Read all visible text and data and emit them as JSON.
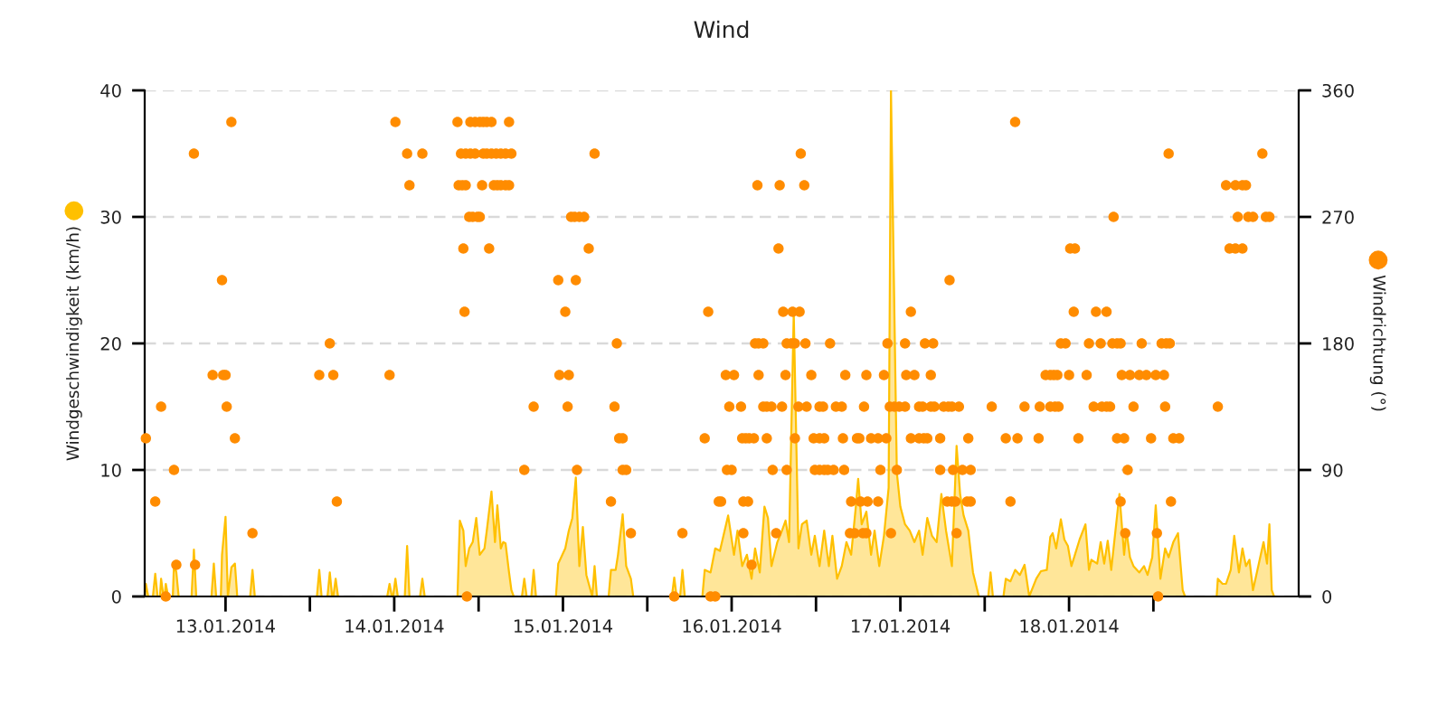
{
  "chart_data": {
    "type": "area",
    "title": "Wind",
    "ylabel": "Windgeschwindigkeit (km/h)",
    "y2label": "Windrichtung (°)",
    "xlim": [
      "2014-01-13T00:30",
      "2014-01-19T20:40"
    ],
    "xticks": [
      {
        "value": "2014-01-13T12:00",
        "label": "13.01.2014"
      },
      {
        "value": "2014-01-14T00:00",
        "label": null
      },
      {
        "value": "2014-01-14T12:00",
        "label": "14.01.2014"
      },
      {
        "value": "2014-01-15T00:00",
        "label": null
      },
      {
        "value": "2014-01-15T12:00",
        "label": "15.01.2014"
      },
      {
        "value": "2014-01-16T00:00",
        "label": null
      },
      {
        "value": "2014-01-16T12:00",
        "label": "16.01.2014"
      },
      {
        "value": "2014-01-17T00:00",
        "label": null
      },
      {
        "value": "2014-01-17T12:00",
        "label": "17.01.2014"
      },
      {
        "value": "2014-01-18T00:00",
        "label": null
      },
      {
        "value": "2014-01-18T12:00",
        "label": "18.01.2014"
      },
      {
        "value": "2014-01-19T00:00",
        "label": null
      }
    ],
    "ylim": [
      0,
      40
    ],
    "yticks": [
      0,
      10,
      20,
      30,
      40
    ],
    "y2lim": [
      0,
      360
    ],
    "y2ticks": [
      0,
      90,
      180,
      270,
      360
    ],
    "grid": "y",
    "legend": false,
    "series": [
      {
        "color": "#ffc000",
        "x": [
          "2014-01-13T00:30",
          "2014-01-13T00:40",
          "2014-01-13T01:00",
          "2014-01-13T01:40",
          "2014-01-13T02:00",
          "2014-01-13T02:20",
          "2014-01-13T02:40",
          "2014-01-13T02:50",
          "2014-01-13T03:10",
          "2014-01-13T03:20",
          "2014-01-13T03:30",
          "2014-01-13T03:50",
          "2014-01-13T04:30",
          "2014-01-13T04:40",
          "2014-01-13T05:00",
          "2014-01-13T05:20",
          "2014-01-13T07:10",
          "2014-01-13T07:30",
          "2014-01-13T07:50",
          "2014-01-13T10:00",
          "2014-01-13T10:20",
          "2014-01-13T10:40",
          "2014-01-13T11:20",
          "2014-01-13T11:30",
          "2014-01-13T12:00",
          "2014-01-13T12:20",
          "2014-01-13T12:50",
          "2014-01-13T13:20",
          "2014-01-13T13:40",
          "2014-01-13T15:30",
          "2014-01-13T15:50",
          "2014-01-13T16:10",
          "2014-01-14T01:00",
          "2014-01-14T01:20",
          "2014-01-14T01:40",
          "2014-01-14T02:30",
          "2014-01-14T02:50",
          "2014-01-14T03:10",
          "2014-01-14T03:20",
          "2014-01-14T03:40",
          "2014-01-14T04:00",
          "2014-01-14T11:00",
          "2014-01-14T11:20",
          "2014-01-14T11:40",
          "2014-01-14T11:50",
          "2014-01-14T12:10",
          "2014-01-14T12:30",
          "2014-01-14T13:30",
          "2014-01-14T13:50",
          "2014-01-14T14:10",
          "2014-01-14T15:40",
          "2014-01-14T16:00",
          "2014-01-14T16:20",
          "2014-01-14T21:00",
          "2014-01-14T21:20",
          "2014-01-14T21:50",
          "2014-01-14T22:10",
          "2014-01-14T22:40",
          "2014-01-14T23:10",
          "2014-01-14T23:40",
          "2014-01-15T00:10",
          "2014-01-15T00:50",
          "2014-01-15T01:10",
          "2014-01-15T01:50",
          "2014-01-15T02:20",
          "2014-01-15T02:40",
          "2014-01-15T03:10",
          "2014-01-15T03:30",
          "2014-01-15T03:50",
          "2014-01-15T04:20",
          "2014-01-15T04:40",
          "2014-01-15T05:00",
          "2014-01-15T06:10",
          "2014-01-15T06:30",
          "2014-01-15T06:50",
          "2014-01-15T07:30",
          "2014-01-15T07:50",
          "2014-01-15T08:10",
          "2014-01-15T11:00",
          "2014-01-15T11:20",
          "2014-01-15T12:20",
          "2014-01-15T12:50",
          "2014-01-15T13:20",
          "2014-01-15T13:50",
          "2014-01-15T14:20",
          "2014-01-15T14:50",
          "2014-01-15T15:20",
          "2014-01-15T16:10",
          "2014-01-15T16:30",
          "2014-01-15T16:50",
          "2014-01-15T18:30",
          "2014-01-15T18:50",
          "2014-01-15T19:30",
          "2014-01-15T19:50",
          "2014-01-15T20:30",
          "2014-01-15T21:00",
          "2014-01-15T21:40",
          "2014-01-15T22:00",
          "2014-01-16T03:30",
          "2014-01-16T03:50",
          "2014-01-16T04:10",
          "2014-01-16T04:40",
          "2014-01-16T05:00",
          "2014-01-16T05:20",
          "2014-01-16T07:50",
          "2014-01-16T08:10",
          "2014-01-16T09:00",
          "2014-01-16T09:40",
          "2014-01-16T10:20",
          "2014-01-16T11:30",
          "2014-01-16T12:20",
          "2014-01-16T12:50",
          "2014-01-16T13:30",
          "2014-01-16T14:10",
          "2014-01-16T14:50",
          "2014-01-16T15:20",
          "2014-01-16T16:00",
          "2014-01-16T16:40",
          "2014-01-16T17:10",
          "2014-01-16T17:40",
          "2014-01-16T18:30",
          "2014-01-16T19:10",
          "2014-01-16T19:40",
          "2014-01-16T20:10",
          "2014-01-16T20:50",
          "2014-01-16T21:30",
          "2014-01-16T22:00",
          "2014-01-16T22:40",
          "2014-01-16T23:20",
          "2014-01-16T23:50",
          "2014-01-17T00:30",
          "2014-01-17T01:10",
          "2014-01-17T01:50",
          "2014-01-17T02:20",
          "2014-01-17T03:00",
          "2014-01-17T03:40",
          "2014-01-17T04:20",
          "2014-01-17T05:00",
          "2014-01-17T05:40",
          "2014-01-17T06:00",
          "2014-01-17T06:30",
          "2014-01-17T07:10",
          "2014-01-17T07:50",
          "2014-01-17T08:20",
          "2014-01-17T09:00",
          "2014-01-17T09:40",
          "2014-01-17T10:20",
          "2014-01-17T10:40",
          "2014-01-17T11:30",
          "2014-01-17T12:00",
          "2014-01-17T12:40",
          "2014-01-17T13:20",
          "2014-01-17T14:00",
          "2014-01-17T14:40",
          "2014-01-17T15:10",
          "2014-01-17T15:50",
          "2014-01-17T16:30",
          "2014-01-17T17:10",
          "2014-01-17T17:50",
          "2014-01-17T18:30",
          "2014-01-17T19:20",
          "2014-01-17T20:00",
          "2014-01-17T20:30",
          "2014-01-17T21:00",
          "2014-01-17T21:40",
          "2014-01-17T22:20",
          "2014-01-17T23:10",
          "2014-01-18T00:30",
          "2014-01-18T00:50",
          "2014-01-18T01:10",
          "2014-01-18T02:40",
          "2014-01-18T03:00",
          "2014-01-18T03:40",
          "2014-01-18T04:20",
          "2014-01-18T05:00",
          "2014-01-18T05:40",
          "2014-01-18T06:20",
          "2014-01-18T07:20",
          "2014-01-18T08:00",
          "2014-01-18T08:50",
          "2014-01-18T09:20",
          "2014-01-18T09:40",
          "2014-01-18T10:10",
          "2014-01-18T10:50",
          "2014-01-18T11:20",
          "2014-01-18T11:50",
          "2014-01-18T12:20",
          "2014-01-18T12:50",
          "2014-01-18T13:30",
          "2014-01-18T14:20",
          "2014-01-18T14:50",
          "2014-01-18T15:10",
          "2014-01-18T16:00",
          "2014-01-18T16:30",
          "2014-01-18T17:00",
          "2014-01-18T17:30",
          "2014-01-18T18:00",
          "2014-01-18T18:50",
          "2014-01-18T19:10",
          "2014-01-18T19:50",
          "2014-01-18T20:10",
          "2014-01-18T20:40",
          "2014-01-18T21:10",
          "2014-01-18T22:00",
          "2014-01-18T22:40",
          "2014-01-18T23:10",
          "2014-01-18T23:50",
          "2014-01-19T00:20",
          "2014-01-19T01:00",
          "2014-01-19T01:40",
          "2014-01-19T02:10",
          "2014-01-19T02:50",
          "2014-01-19T03:30",
          "2014-01-19T04:10",
          "2014-01-19T04:30",
          "2014-01-19T09:00",
          "2014-01-19T09:10",
          "2014-01-19T09:50",
          "2014-01-19T10:20",
          "2014-01-19T11:00",
          "2014-01-19T11:30",
          "2014-01-19T12:10",
          "2014-01-19T12:40",
          "2014-01-19T13:10",
          "2014-01-19T13:40",
          "2014-01-19T14:10",
          "2014-01-19T15:00",
          "2014-01-19T15:40",
          "2014-01-19T16:10",
          "2014-01-19T16:30",
          "2014-01-19T16:50",
          "2014-01-19T17:10"
        ],
        "values": [
          0,
          1.0,
          0,
          0,
          1.8,
          0,
          0,
          1.4,
          0,
          0,
          1.0,
          0,
          0,
          2.6,
          1.9,
          0,
          0,
          3.7,
          0,
          0,
          2.6,
          0,
          0,
          3.3,
          6.3,
          0,
          2.3,
          2.6,
          0,
          0,
          2.1,
          0,
          0,
          2.1,
          0,
          0,
          1.9,
          0,
          0,
          1.4,
          0,
          0,
          1.0,
          0,
          0,
          1.4,
          0,
          0,
          4.0,
          0,
          0,
          1.4,
          0,
          0,
          6.0,
          5.2,
          2.4,
          3.8,
          4.3,
          6.2,
          3.3,
          3.8,
          5.2,
          8.3,
          4.3,
          7.2,
          3.8,
          4.3,
          4.2,
          1.9,
          0.5,
          0,
          0,
          1.4,
          0,
          0,
          2.1,
          0,
          0,
          2.6,
          3.8,
          5.2,
          6.2,
          9.4,
          2.4,
          5.5,
          1.7,
          0,
          2.4,
          0,
          0,
          2.1,
          2.1,
          3.3,
          6.5,
          2.4,
          1.4,
          0,
          0,
          1.5,
          0,
          0,
          2.1,
          0,
          0,
          2.1,
          1.9,
          3.8,
          3.6,
          6.4,
          3.3,
          5.2,
          2.4,
          3.3,
          1.4,
          3.8,
          1.9,
          7.1,
          6.2,
          2.4,
          4.3,
          5.2,
          6.0,
          4.3,
          22.4,
          3.8,
          5.7,
          6.0,
          3.3,
          4.8,
          2.4,
          5.2,
          2.4,
          4.8,
          1.4,
          2.4,
          4.3,
          3.3,
          7.1,
          9.3,
          5.7,
          6.7,
          3.3,
          5.2,
          2.4,
          4.8,
          8.6,
          40,
          9.8,
          7.1,
          5.7,
          5.2,
          4.3,
          5.2,
          3.3,
          6.2,
          4.8,
          4.3,
          8.1,
          5.2,
          2.4,
          11.9,
          8.1,
          6.4,
          5.2,
          1.9,
          0,
          0,
          1.9,
          0,
          0,
          1.4,
          1.2,
          2.1,
          1.7,
          2.5,
          0,
          1.4,
          2.0,
          2.1,
          4.7,
          5.0,
          3.8,
          6.1,
          4.5,
          4.0,
          2.4,
          3.3,
          4.5,
          5.7,
          2.1,
          2.9,
          2.6,
          4.3,
          2.6,
          4.4,
          2.1,
          6.4,
          8.1,
          3.3,
          5.2,
          3.1,
          2.4,
          1.9,
          2.4,
          1.7,
          3.1,
          7.2,
          1.4,
          3.8,
          3.1,
          4.3,
          5.0,
          0.5,
          0,
          0,
          1.4,
          1.0,
          1.0,
          2.1,
          4.8,
          1.9,
          3.8,
          2.4,
          2.9,
          0.5,
          2.6,
          4.3,
          2.6,
          5.7,
          0.5,
          0
        ]
      },
      {
        "type": "scatter",
        "axis": "y2",
        "color": "#ff8c00",
        "marker": "circle",
        "x": [
          "2014-01-13T00:40",
          "2014-01-13T02:00",
          "2014-01-13T02:50",
          "2014-01-13T03:30",
          "2014-01-13T04:40",
          "2014-01-13T05:00",
          "2014-01-13T07:30",
          "2014-01-13T07:40",
          "2014-01-13T10:10",
          "2014-01-13T11:30",
          "2014-01-13T11:40",
          "2014-01-13T12:00",
          "2014-01-13T12:10",
          "2014-01-13T12:50",
          "2014-01-13T13:20",
          "2014-01-13T15:50",
          "2014-01-14T01:20",
          "2014-01-14T02:50",
          "2014-01-14T03:20",
          "2014-01-14T03:50",
          "2014-01-14T11:20",
          "2014-01-14T12:10",
          "2014-01-14T13:50",
          "2014-01-14T14:10",
          "2014-01-14T16:00",
          "2014-01-14T21:00",
          "2014-01-14T21:10",
          "2014-01-14T21:30",
          "2014-01-14T21:40",
          "2014-01-14T21:50",
          "2014-01-14T22:00",
          "2014-01-14T22:10",
          "2014-01-14T22:10",
          "2014-01-14T22:20",
          "2014-01-14T22:40",
          "2014-01-14T22:50",
          "2014-01-14T22:50",
          "2014-01-14T23:10",
          "2014-01-14T23:30",
          "2014-01-14T23:30",
          "2014-01-14T23:50",
          "2014-01-15T00:10",
          "2014-01-15T00:10",
          "2014-01-15T00:30",
          "2014-01-15T00:40",
          "2014-01-15T00:40",
          "2014-01-15T01:10",
          "2014-01-15T01:10",
          "2014-01-15T01:30",
          "2014-01-15T01:50",
          "2014-01-15T01:50",
          "2014-01-15T02:10",
          "2014-01-15T02:30",
          "2014-01-15T02:40",
          "2014-01-15T03:10",
          "2014-01-15T03:10",
          "2014-01-15T03:50",
          "2014-01-15T03:50",
          "2014-01-15T04:20",
          "2014-01-15T04:20",
          "2014-01-15T04:40",
          "2014-01-15T06:30",
          "2014-01-15T07:50",
          "2014-01-15T11:20",
          "2014-01-15T11:30",
          "2014-01-15T12:20",
          "2014-01-15T12:40",
          "2014-01-15T12:50",
          "2014-01-15T13:10",
          "2014-01-15T13:40",
          "2014-01-15T13:50",
          "2014-01-15T14:00",
          "2014-01-15T14:20",
          "2014-01-15T15:00",
          "2014-01-15T15:40",
          "2014-01-15T16:30",
          "2014-01-15T18:50",
          "2014-01-15T19:20",
          "2014-01-15T19:40",
          "2014-01-15T20:00",
          "2014-01-15T20:30",
          "2014-01-15T20:30",
          "2014-01-15T21:00",
          "2014-01-15T21:40",
          "2014-01-16T03:50",
          "2014-01-16T05:00",
          "2014-01-16T08:10",
          "2014-01-16T08:40",
          "2014-01-16T09:00",
          "2014-01-16T09:40",
          "2014-01-16T10:10",
          "2014-01-16T10:30",
          "2014-01-16T11:10",
          "2014-01-16T11:20",
          "2014-01-16T11:40",
          "2014-01-16T12:00",
          "2014-01-16T12:20",
          "2014-01-16T13:20",
          "2014-01-16T13:30",
          "2014-01-16T13:40",
          "2014-01-16T13:40",
          "2014-01-16T14:00",
          "2014-01-16T14:20",
          "2014-01-16T14:30",
          "2014-01-16T14:50",
          "2014-01-16T15:10",
          "2014-01-16T15:20",
          "2014-01-16T15:40",
          "2014-01-16T15:50",
          "2014-01-16T15:50",
          "2014-01-16T16:30",
          "2014-01-16T16:30",
          "2014-01-16T17:00",
          "2014-01-16T17:00",
          "2014-01-16T17:40",
          "2014-01-16T17:50",
          "2014-01-16T18:20",
          "2014-01-16T18:40",
          "2014-01-16T18:50",
          "2014-01-16T19:10",
          "2014-01-16T19:20",
          "2014-01-16T19:40",
          "2014-01-16T19:50",
          "2014-01-16T19:50",
          "2014-01-16T20:30",
          "2014-01-16T20:40",
          "2014-01-16T21:00",
          "2014-01-16T21:00",
          "2014-01-16T21:30",
          "2014-01-16T21:40",
          "2014-01-16T21:50",
          "2014-01-16T22:20",
          "2014-01-16T22:30",
          "2014-01-16T22:40",
          "2014-01-16T23:20",
          "2014-01-16T23:40",
          "2014-01-16T23:50",
          "2014-01-17T00:30",
          "2014-01-17T00:30",
          "2014-01-17T00:30",
          "2014-01-17T01:00",
          "2014-01-17T01:10",
          "2014-01-17T01:10",
          "2014-01-17T01:40",
          "2014-01-17T02:00",
          "2014-01-17T02:30",
          "2014-01-17T02:50",
          "2014-01-17T03:40",
          "2014-01-17T03:50",
          "2014-01-17T04:00",
          "2014-01-17T04:10",
          "2014-01-17T04:50",
          "2014-01-17T05:00",
          "2014-01-17T05:30",
          "2014-01-17T05:50",
          "2014-01-17T06:10",
          "2014-01-17T06:20",
          "2014-01-17T06:40",
          "2014-01-17T06:50",
          "2014-01-17T07:10",
          "2014-01-17T07:10",
          "2014-01-17T07:20",
          "2014-01-17T07:50",
          "2014-01-17T08:50",
          "2014-01-17T08:50",
          "2014-01-17T09:10",
          "2014-01-17T09:40",
          "2014-01-17T10:00",
          "2014-01-17T10:10",
          "2014-01-17T10:30",
          "2014-01-17T10:40",
          "2014-01-17T11:10",
          "2014-01-17T11:30",
          "2014-01-17T11:50",
          "2014-01-17T12:40",
          "2014-01-17T12:40",
          "2014-01-17T12:50",
          "2014-01-17T13:30",
          "2014-01-17T13:30",
          "2014-01-17T14:00",
          "2014-01-17T14:40",
          "2014-01-17T14:40",
          "2014-01-17T15:10",
          "2014-01-17T15:20",
          "2014-01-17T15:30",
          "2014-01-17T15:50",
          "2014-01-17T16:20",
          "2014-01-17T16:20",
          "2014-01-17T16:40",
          "2014-01-17T16:50",
          "2014-01-17T17:40",
          "2014-01-17T17:40",
          "2014-01-17T18:10",
          "2014-01-17T18:40",
          "2014-01-17T18:50",
          "2014-01-17T19:00",
          "2014-01-17T19:20",
          "2014-01-17T19:20",
          "2014-01-17T19:30",
          "2014-01-17T19:50",
          "2014-01-17T20:00",
          "2014-01-17T20:20",
          "2014-01-17T20:50",
          "2014-01-17T21:30",
          "2014-01-17T21:40",
          "2014-01-17T22:00",
          "2014-01-17T22:00",
          "2014-01-18T01:00",
          "2014-01-18T03:00",
          "2014-01-18T03:40",
          "2014-01-18T04:20",
          "2014-01-18T04:40",
          "2014-01-18T05:40",
          "2014-01-18T07:40",
          "2014-01-18T07:50",
          "2014-01-18T08:40",
          "2014-01-18T09:20",
          "2014-01-18T09:20",
          "2014-01-18T09:50",
          "2014-01-18T10:00",
          "2014-01-18T10:20",
          "2014-01-18T10:30",
          "2014-01-18T10:50",
          "2014-01-18T11:30",
          "2014-01-18T12:00",
          "2014-01-18T12:10",
          "2014-01-18T12:40",
          "2014-01-18T12:50",
          "2014-01-18T13:20",
          "2014-01-18T14:30",
          "2014-01-18T14:50",
          "2014-01-18T15:30",
          "2014-01-18T15:50",
          "2014-01-18T16:30",
          "2014-01-18T16:40",
          "2014-01-18T17:20",
          "2014-01-18T17:20",
          "2014-01-18T17:50",
          "2014-01-18T18:10",
          "2014-01-18T18:20",
          "2014-01-18T18:50",
          "2014-01-18T18:50",
          "2014-01-18T19:20",
          "2014-01-18T19:20",
          "2014-01-18T19:30",
          "2014-01-18T19:50",
          "2014-01-18T20:00",
          "2014-01-18T20:20",
          "2014-01-18T20:40",
          "2014-01-18T21:10",
          "2014-01-18T22:00",
          "2014-01-18T22:20",
          "2014-01-18T23:00",
          "2014-01-18T23:40",
          "2014-01-19T00:20",
          "2014-01-19T00:30",
          "2014-01-19T00:40",
          "2014-01-19T01:10",
          "2014-01-19T01:30",
          "2014-01-19T01:40",
          "2014-01-19T01:50",
          "2014-01-19T02:10",
          "2014-01-19T02:20",
          "2014-01-19T02:30",
          "2014-01-19T02:50",
          "2014-01-19T03:40",
          "2014-01-19T09:10",
          "2014-01-19T10:20",
          "2014-01-19T10:50",
          "2014-01-19T11:40",
          "2014-01-19T11:40",
          "2014-01-19T12:00",
          "2014-01-19T12:40",
          "2014-01-19T12:40",
          "2014-01-19T13:10",
          "2014-01-19T13:30",
          "2014-01-19T14:10",
          "2014-01-19T15:30",
          "2014-01-19T16:00",
          "2014-01-19T16:30"
        ],
        "values": [
          112.5,
          67.5,
          135,
          0,
          90,
          22.5,
          315,
          22.5,
          157.5,
          225,
          157.5,
          157.5,
          135,
          337.5,
          112.5,
          45,
          157.5,
          180,
          157.5,
          67.5,
          157.5,
          337.5,
          315,
          292.5,
          315,
          337.5,
          292.5,
          315,
          292.5,
          247.5,
          202.5,
          315,
          292.5,
          0,
          270,
          337.5,
          315,
          270,
          337.5,
          315,
          270,
          337.5,
          270,
          292.5,
          337.5,
          315,
          337.5,
          315,
          247.5,
          337.5,
          315,
          292.5,
          315,
          292.5,
          315,
          292.5,
          315,
          292.5,
          337.5,
          292.5,
          315,
          90,
          135,
          225,
          157.5,
          202.5,
          135,
          157.5,
          270,
          270,
          225,
          90,
          270,
          270,
          247.5,
          315,
          67.5,
          135,
          180,
          112.5,
          112.5,
          90,
          90,
          45,
          0,
          45,
          112.5,
          202.5,
          0,
          0,
          67.5,
          67.5,
          157.5,
          90,
          135,
          90,
          157.5,
          135,
          112.5,
          67.5,
          45,
          112.5,
          67.5,
          112.5,
          22.5,
          112.5,
          180,
          292.5,
          180,
          157.5,
          180,
          135,
          135,
          112.5,
          135,
          90,
          45,
          247.5,
          292.5,
          135,
          202.5,
          157.5,
          180,
          90,
          180,
          202.5,
          180,
          112.5,
          135,
          202.5,
          315,
          292.5,
          180,
          135,
          157.5,
          112.5,
          90,
          135,
          112.5,
          90,
          135,
          112.5,
          90,
          90,
          180,
          90,
          135,
          135,
          112.5,
          90,
          157.5,
          45,
          67.5,
          45,
          112.5,
          112.5,
          67.5,
          45,
          135,
          157.5,
          45,
          67.5,
          112.5,
          112.5,
          67.5,
          90,
          157.5,
          112.5,
          180,
          135,
          45,
          135,
          90,
          135,
          180,
          135,
          157.5,
          202.5,
          112.5,
          157.5,
          135,
          112.5,
          135,
          112.5,
          180,
          112.5,
          157.5,
          135,
          180,
          135,
          112.5,
          90,
          135,
          67.5,
          135,
          225,
          135,
          67.5,
          90,
          67.5,
          45,
          135,
          90,
          67.5,
          112.5,
          90,
          67.5,
          135,
          112.5,
          67.5,
          337.5,
          112.5,
          135,
          112.5,
          135,
          157.5,
          157.5,
          135,
          157.5,
          135,
          157.5,
          135,
          180,
          180,
          157.5,
          247.5,
          202.5,
          247.5,
          112.5,
          157.5,
          180,
          135,
          202.5,
          180,
          135,
          135,
          202.5,
          135,
          180,
          270,
          180,
          112.5,
          180,
          67.5,
          157.5,
          112.5,
          45,
          90,
          157.5,
          135,
          157.5,
          180,
          157.5,
          112.5,
          157.5,
          45,
          0,
          180,
          157.5,
          135,
          180,
          315,
          180,
          67.5,
          112.5,
          112.5,
          135,
          292.5,
          247.5,
          292.5,
          247.5,
          270,
          292.5,
          247.5,
          292.5,
          270,
          270,
          315,
          270,
          270
        ]
      }
    ]
  }
}
